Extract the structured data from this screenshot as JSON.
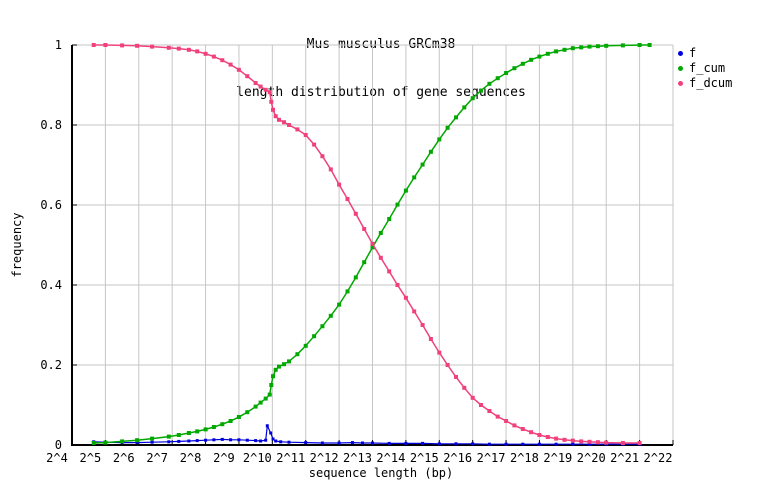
{
  "title": {
    "line1": "Mus musculus GRCm38",
    "line2": "length distribution of gene sequences"
  },
  "axes": {
    "x_label": "sequence length (bp)",
    "y_label": "frequency"
  },
  "colors": {
    "background": "#ffffff",
    "grid": "#c6c6c6",
    "axis": "#000000",
    "series_f": "#0000dd",
    "series_f_cum": "#00a800",
    "series_f_dcum": "#f0417d"
  },
  "chart_data": {
    "type": "line",
    "title": "Mus musculus GRCm38 - length distribution of gene sequences",
    "xlabel": "sequence length (bp)",
    "ylabel": "frequency",
    "x_scale": "log2, x values below are exponents e in 2^e bp",
    "xlim_exponents": [
      4,
      22
    ],
    "ylim": [
      0,
      1
    ],
    "grid": true,
    "legend_position": "outside-top-right",
    "x_ticks": {
      "exponents": [
        4,
        5,
        6,
        7,
        8,
        9,
        10,
        11,
        12,
        13,
        14,
        15,
        16,
        17,
        18,
        19,
        20,
        21,
        22
      ],
      "labels": [
        "2^4",
        "2^5",
        "2^6",
        "2^7",
        "2^8",
        "2^9",
        "2^10",
        "2^11",
        "2^12",
        "2^13",
        "2^14",
        "2^15",
        "2^16",
        "2^17",
        "2^18",
        "2^19",
        "2^20",
        "2^21",
        "2^22"
      ]
    },
    "y_ticks": {
      "values": [
        0,
        0.2,
        0.4,
        0.6,
        0.8,
        1
      ],
      "labels": [
        "0",
        "0.2",
        "0.4",
        "0.6",
        "0.8",
        "1"
      ]
    },
    "series": [
      {
        "name": "f",
        "color": "#0000dd",
        "style": "linespoints",
        "line_width": 1.2,
        "marker_px": 3,
        "points": [
          [
            4.65,
            0.008
          ],
          [
            5,
            0.007
          ],
          [
            5.5,
            0.006
          ],
          [
            5.95,
            0.006
          ],
          [
            6.4,
            0.007
          ],
          [
            6.9,
            0.008
          ],
          [
            7.2,
            0.009
          ],
          [
            7.5,
            0.01
          ],
          [
            7.75,
            0.011
          ],
          [
            8,
            0.012
          ],
          [
            8.25,
            0.013
          ],
          [
            8.5,
            0.014
          ],
          [
            8.75,
            0.013
          ],
          [
            9,
            0.013
          ],
          [
            9.25,
            0.012
          ],
          [
            9.5,
            0.011
          ],
          [
            9.65,
            0.01
          ],
          [
            9.8,
            0.012
          ],
          [
            9.85,
            0.048
          ],
          [
            9.95,
            0.03
          ],
          [
            10.02,
            0.015
          ],
          [
            10.1,
            0.01
          ],
          [
            10.25,
            0.008
          ],
          [
            10.5,
            0.007
          ],
          [
            11,
            0.006
          ],
          [
            11.5,
            0.005
          ],
          [
            12,
            0.005
          ],
          [
            12.4,
            0.006
          ],
          [
            12.7,
            0.005
          ],
          [
            13,
            0.005
          ],
          [
            13.5,
            0.004
          ],
          [
            14,
            0.004
          ],
          [
            14.5,
            0.004
          ],
          [
            15,
            0.003
          ],
          [
            15.5,
            0.003
          ],
          [
            16,
            0.003
          ],
          [
            16.5,
            0.002
          ],
          [
            17,
            0.002
          ],
          [
            17.5,
            0.002
          ],
          [
            18,
            0.002
          ],
          [
            18.5,
            0.002
          ],
          [
            19,
            0.002
          ],
          [
            19.5,
            0.002
          ],
          [
            20,
            0.002
          ],
          [
            20.5,
            0.002
          ],
          [
            21,
            0.002
          ]
        ]
      },
      {
        "name": "f_cum",
        "color": "#00a800",
        "style": "linespoints",
        "line_width": 1.5,
        "marker_px": 4,
        "points": [
          [
            4.65,
            0.005
          ],
          [
            5,
            0.006
          ],
          [
            5.5,
            0.009
          ],
          [
            5.95,
            0.012
          ],
          [
            6.4,
            0.016
          ],
          [
            6.9,
            0.021
          ],
          [
            7.2,
            0.025
          ],
          [
            7.5,
            0.03
          ],
          [
            7.75,
            0.034
          ],
          [
            8,
            0.039
          ],
          [
            8.25,
            0.045
          ],
          [
            8.5,
            0.052
          ],
          [
            8.75,
            0.06
          ],
          [
            9,
            0.07
          ],
          [
            9.25,
            0.082
          ],
          [
            9.5,
            0.096
          ],
          [
            9.65,
            0.106
          ],
          [
            9.8,
            0.116
          ],
          [
            9.92,
            0.126
          ],
          [
            9.97,
            0.15
          ],
          [
            10.02,
            0.172
          ],
          [
            10.1,
            0.188
          ],
          [
            10.2,
            0.196
          ],
          [
            10.35,
            0.202
          ],
          [
            10.5,
            0.209
          ],
          [
            10.75,
            0.227
          ],
          [
            11,
            0.248
          ],
          [
            11.25,
            0.272
          ],
          [
            11.5,
            0.297
          ],
          [
            11.75,
            0.323
          ],
          [
            12,
            0.351
          ],
          [
            12.25,
            0.384
          ],
          [
            12.5,
            0.419
          ],
          [
            12.75,
            0.457
          ],
          [
            13,
            0.494
          ],
          [
            13.25,
            0.53
          ],
          [
            13.5,
            0.565
          ],
          [
            13.75,
            0.601
          ],
          [
            14,
            0.636
          ],
          [
            14.25,
            0.669
          ],
          [
            14.5,
            0.701
          ],
          [
            14.75,
            0.733
          ],
          [
            15,
            0.764
          ],
          [
            15.25,
            0.793
          ],
          [
            15.5,
            0.819
          ],
          [
            15.75,
            0.844
          ],
          [
            16,
            0.867
          ],
          [
            16.25,
            0.886
          ],
          [
            16.5,
            0.903
          ],
          [
            16.75,
            0.917
          ],
          [
            17,
            0.93
          ],
          [
            17.25,
            0.942
          ],
          [
            17.5,
            0.953
          ],
          [
            17.75,
            0.963
          ],
          [
            18,
            0.971
          ],
          [
            18.25,
            0.978
          ],
          [
            18.5,
            0.984
          ],
          [
            18.75,
            0.988
          ],
          [
            19,
            0.992
          ],
          [
            19.25,
            0.994
          ],
          [
            19.5,
            0.996
          ],
          [
            19.75,
            0.997
          ],
          [
            20,
            0.998
          ],
          [
            20.5,
            0.999
          ],
          [
            21,
            1.0
          ],
          [
            21.3,
            1.0
          ]
        ]
      },
      {
        "name": "f_dcum",
        "color": "#f0417d",
        "style": "linespoints",
        "line_width": 1.5,
        "marker_px": 4,
        "points": [
          [
            4.65,
            1.0
          ],
          [
            5,
            1.0
          ],
          [
            5.5,
            0.999
          ],
          [
            5.95,
            0.998
          ],
          [
            6.4,
            0.996
          ],
          [
            6.9,
            0.993
          ],
          [
            7.2,
            0.991
          ],
          [
            7.5,
            0.988
          ],
          [
            7.75,
            0.984
          ],
          [
            8,
            0.978
          ],
          [
            8.25,
            0.971
          ],
          [
            8.5,
            0.962
          ],
          [
            8.75,
            0.951
          ],
          [
            9,
            0.938
          ],
          [
            9.25,
            0.922
          ],
          [
            9.5,
            0.905
          ],
          [
            9.65,
            0.896
          ],
          [
            9.8,
            0.888
          ],
          [
            9.92,
            0.882
          ],
          [
            9.97,
            0.858
          ],
          [
            10.02,
            0.838
          ],
          [
            10.1,
            0.822
          ],
          [
            10.2,
            0.813
          ],
          [
            10.35,
            0.807
          ],
          [
            10.5,
            0.8
          ],
          [
            10.75,
            0.789
          ],
          [
            11,
            0.775
          ],
          [
            11.25,
            0.751
          ],
          [
            11.5,
            0.722
          ],
          [
            11.75,
            0.689
          ],
          [
            12,
            0.651
          ],
          [
            12.25,
            0.615
          ],
          [
            12.5,
            0.578
          ],
          [
            12.75,
            0.54
          ],
          [
            13,
            0.503
          ],
          [
            13.25,
            0.468
          ],
          [
            13.5,
            0.434
          ],
          [
            13.75,
            0.4
          ],
          [
            14,
            0.368
          ],
          [
            14.25,
            0.334
          ],
          [
            14.5,
            0.3
          ],
          [
            14.75,
            0.265
          ],
          [
            15,
            0.231
          ],
          [
            15.25,
            0.2
          ],
          [
            15.5,
            0.17
          ],
          [
            15.75,
            0.143
          ],
          [
            16,
            0.118
          ],
          [
            16.25,
            0.1
          ],
          [
            16.5,
            0.085
          ],
          [
            16.75,
            0.071
          ],
          [
            17,
            0.06
          ],
          [
            17.25,
            0.049
          ],
          [
            17.5,
            0.04
          ],
          [
            17.75,
            0.032
          ],
          [
            18,
            0.025
          ],
          [
            18.25,
            0.02
          ],
          [
            18.5,
            0.016
          ],
          [
            18.75,
            0.013
          ],
          [
            19,
            0.011
          ],
          [
            19.25,
            0.009
          ],
          [
            19.5,
            0.008
          ],
          [
            19.75,
            0.007
          ],
          [
            20,
            0.006
          ],
          [
            20.5,
            0.005
          ],
          [
            21,
            0.005
          ]
        ]
      }
    ]
  }
}
